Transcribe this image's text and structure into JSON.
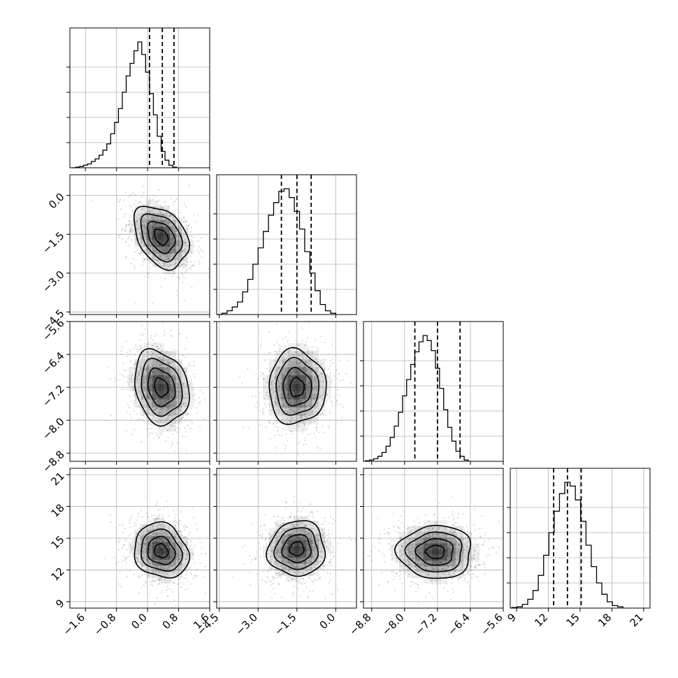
{
  "chart_data": {
    "type": "corner",
    "grid": true,
    "parameters": [
      {
        "axis_ticks": [
          -1.6,
          -0.8,
          0.0,
          0.8,
          1.6
        ],
        "tick_labels": [
          "−1.6",
          "−0.8",
          "0.0",
          "0.8",
          "1.6"
        ],
        "range": [
          -2.0,
          1.6
        ]
      },
      {
        "axis_ticks": [
          -4.5,
          -3.0,
          -1.5,
          0.0
        ],
        "tick_labels": [
          "−4.5",
          "−3.0",
          "−1.5",
          "0.0"
        ],
        "range": [
          -4.6,
          0.8
        ]
      },
      {
        "axis_ticks": [
          -8.8,
          -8.0,
          -7.2,
          -6.4,
          -5.6
        ],
        "tick_labels": [
          "−8.8",
          "−8.0",
          "−7.2",
          "−6.4",
          "−5.6"
        ],
        "range": [
          -9.0,
          -5.6
        ]
      },
      {
        "axis_ticks": [
          9,
          12,
          15,
          18,
          21
        ],
        "tick_labels": [
          "9",
          "12",
          "15",
          "18",
          "21"
        ],
        "range": [
          8.4,
          21.6
        ]
      }
    ],
    "histograms": [
      {
        "bins": [
          [
            -1.9,
            0.0
          ],
          [
            -1.8,
            0.005
          ],
          [
            -1.7,
            0.01
          ],
          [
            -1.6,
            0.02
          ],
          [
            -1.5,
            0.03
          ],
          [
            -1.4,
            0.05
          ],
          [
            -1.3,
            0.07
          ],
          [
            -1.2,
            0.1
          ],
          [
            -1.1,
            0.14
          ],
          [
            -1.0,
            0.19
          ],
          [
            -0.9,
            0.27
          ],
          [
            -0.8,
            0.36
          ],
          [
            -0.7,
            0.47
          ],
          [
            -0.6,
            0.6
          ],
          [
            -0.5,
            0.73
          ],
          [
            -0.4,
            0.83
          ],
          [
            -0.3,
            0.93
          ],
          [
            -0.2,
            1.0
          ],
          [
            -0.1,
            0.9
          ],
          [
            0.0,
            0.76
          ],
          [
            0.1,
            0.59
          ],
          [
            0.2,
            0.42
          ],
          [
            0.3,
            0.25
          ],
          [
            0.4,
            0.13
          ],
          [
            0.5,
            0.06
          ],
          [
            0.6,
            0.02
          ],
          [
            0.7,
            0.005
          ]
        ],
        "quantiles": [
          0.05,
          0.38,
          0.68
        ]
      },
      {
        "bins": [
          [
            -4.5,
            0.0
          ],
          [
            -4.3,
            0.01
          ],
          [
            -4.1,
            0.03
          ],
          [
            -3.9,
            0.06
          ],
          [
            -3.7,
            0.1
          ],
          [
            -3.5,
            0.18
          ],
          [
            -3.3,
            0.28
          ],
          [
            -3.1,
            0.4
          ],
          [
            -2.9,
            0.53
          ],
          [
            -2.7,
            0.66
          ],
          [
            -2.5,
            0.79
          ],
          [
            -2.3,
            0.89
          ],
          [
            -2.1,
            0.98
          ],
          [
            -1.9,
            1.0
          ],
          [
            -1.7,
            0.93
          ],
          [
            -1.5,
            0.82
          ],
          [
            -1.3,
            0.68
          ],
          [
            -1.1,
            0.5
          ],
          [
            -0.9,
            0.33
          ],
          [
            -0.7,
            0.19
          ],
          [
            -0.5,
            0.08
          ],
          [
            -0.3,
            0.03
          ],
          [
            -0.1,
            0.01
          ]
        ],
        "quantiles": [
          -2.1,
          -1.5,
          -0.95
        ]
      },
      {
        "bins": [
          [
            -8.9,
            0.005
          ],
          [
            -8.8,
            0.01
          ],
          [
            -8.7,
            0.02
          ],
          [
            -8.6,
            0.04
          ],
          [
            -8.5,
            0.07
          ],
          [
            -8.4,
            0.12
          ],
          [
            -8.3,
            0.19
          ],
          [
            -8.2,
            0.28
          ],
          [
            -8.1,
            0.39
          ],
          [
            -8.0,
            0.52
          ],
          [
            -7.9,
            0.65
          ],
          [
            -7.8,
            0.77
          ],
          [
            -7.7,
            0.87
          ],
          [
            -7.6,
            0.95
          ],
          [
            -7.5,
            1.0
          ],
          [
            -7.4,
            0.96
          ],
          [
            -7.3,
            0.88
          ],
          [
            -7.2,
            0.74
          ],
          [
            -7.1,
            0.58
          ],
          [
            -7.0,
            0.41
          ],
          [
            -6.9,
            0.27
          ],
          [
            -6.8,
            0.16
          ],
          [
            -6.7,
            0.08
          ],
          [
            -6.6,
            0.04
          ],
          [
            -6.5,
            0.01
          ]
        ],
        "quantiles": [
          -7.75,
          -7.2,
          -6.65
        ]
      },
      {
        "bins": [
          [
            8.8,
            0.005
          ],
          [
            9.3,
            0.01
          ],
          [
            9.8,
            0.03
          ],
          [
            10.3,
            0.07
          ],
          [
            10.8,
            0.14
          ],
          [
            11.3,
            0.26
          ],
          [
            11.8,
            0.42
          ],
          [
            12.3,
            0.6
          ],
          [
            12.8,
            0.77
          ],
          [
            13.3,
            0.91
          ],
          [
            13.8,
            1.0
          ],
          [
            14.3,
            0.97
          ],
          [
            14.8,
            0.86
          ],
          [
            15.3,
            0.69
          ],
          [
            15.8,
            0.5
          ],
          [
            16.3,
            0.33
          ],
          [
            16.8,
            0.2
          ],
          [
            17.3,
            0.11
          ],
          [
            17.8,
            0.05
          ],
          [
            18.3,
            0.02
          ],
          [
            18.8,
            0.01
          ]
        ],
        "quantiles": [
          12.5,
          13.8,
          15.1
        ]
      }
    ],
    "contour_panels": [
      {
        "x_param": 0,
        "y_param": 1,
        "center": [
          0.35,
          -1.6
        ],
        "sigma": [
          0.35,
          0.6
        ],
        "rho": -0.35
      },
      {
        "x_param": 0,
        "y_param": 2,
        "center": [
          0.35,
          -7.2
        ],
        "sigma": [
          0.35,
          0.45
        ],
        "rho": -0.2
      },
      {
        "x_param": 1,
        "y_param": 2,
        "center": [
          -1.5,
          -7.2
        ],
        "sigma": [
          0.55,
          0.45
        ],
        "rho": 0.0
      },
      {
        "x_param": 0,
        "y_param": 3,
        "center": [
          0.35,
          13.8
        ],
        "sigma": [
          0.35,
          1.3
        ],
        "rho": -0.15
      },
      {
        "x_param": 1,
        "y_param": 3,
        "center": [
          -1.5,
          14.0
        ],
        "sigma": [
          0.55,
          1.3
        ],
        "rho": 0.05
      },
      {
        "x_param": 2,
        "y_param": 3,
        "center": [
          -7.25,
          13.7
        ],
        "sigma": [
          0.45,
          1.25
        ],
        "rho": 0.0
      }
    ],
    "contour_levels": [
      0.5,
      1.0,
      1.5,
      2.0
    ],
    "colors": {
      "line": "#000000",
      "grid": "#b0b0b0",
      "scatter": "#999999",
      "density": "#000000"
    }
  }
}
